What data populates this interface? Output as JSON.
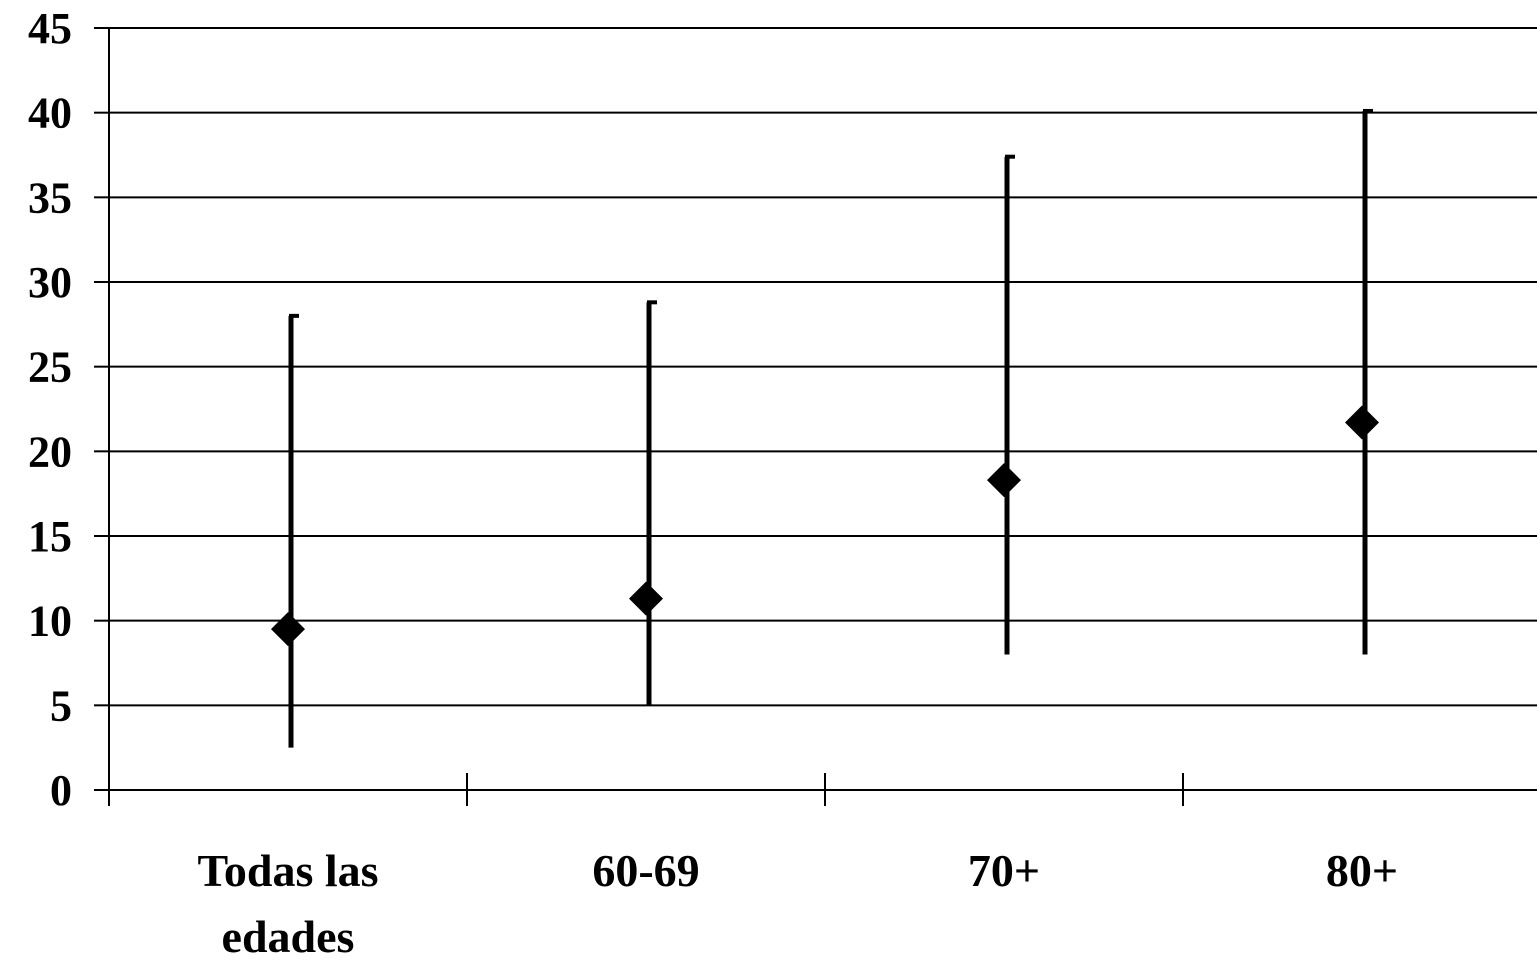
{
  "chart_data": {
    "type": "scatter",
    "title": "",
    "xlabel": "",
    "ylabel": "",
    "ylim": [
      0,
      45
    ],
    "yticks": [
      "0",
      "5",
      "10",
      "15",
      "20",
      "25",
      "30",
      "35",
      "40",
      "45"
    ],
    "grid": true,
    "legend": "none",
    "categories": [
      [
        "Todas las",
        "edades"
      ],
      [
        "60-69"
      ],
      [
        "70+"
      ],
      [
        "80+"
      ]
    ],
    "series": [
      {
        "values": [
          9.5,
          11.3,
          18.3,
          21.7
        ],
        "lower": [
          2.5,
          5.0,
          8.0,
          8.0
        ],
        "upper": [
          28.0,
          28.8,
          37.4,
          40.1
        ]
      }
    ],
    "colors": {
      "marker": "#000000",
      "grid": "#000000",
      "background": "#ffffff"
    }
  }
}
